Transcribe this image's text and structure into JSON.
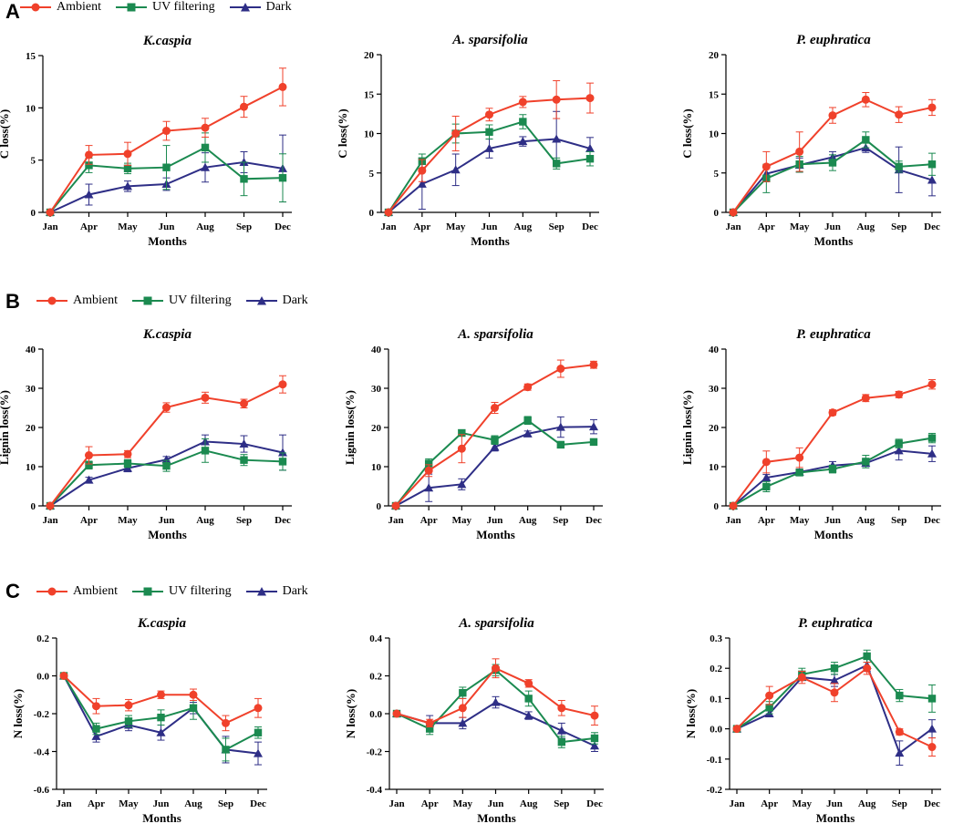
{
  "legend": {
    "ambient": {
      "label": "Ambient",
      "color": "#f0412b",
      "marker": "circle"
    },
    "uv": {
      "label": "UV filtering",
      "color": "#1b8a50",
      "marker": "square"
    },
    "dark": {
      "label": "Dark",
      "color": "#2e2e86",
      "marker": "triangle"
    }
  },
  "panels": {
    "A": "A",
    "B": "B",
    "C": "C"
  },
  "chart_data": [
    {
      "type": "line",
      "title": "K.caspia",
      "xlabel": "Months",
      "ylabel": "C loss(%)",
      "categories": [
        "Jan",
        "Apr",
        "May",
        "Jun",
        "Aug",
        "Sep",
        "Dec"
      ],
      "ylim": [
        0,
        15
      ],
      "yticks": [
        0,
        5,
        10,
        15
      ],
      "ytick_labels": [
        "0",
        "5",
        "10",
        "15"
      ],
      "series": [
        {
          "name": "Ambient",
          "values": [
            0,
            5.5,
            5.6,
            7.8,
            8.1,
            10.1,
            12.0
          ],
          "err": [
            0,
            0.9,
            1.1,
            0.9,
            0.9,
            1.0,
            1.8
          ]
        },
        {
          "name": "UV filtering",
          "values": [
            0,
            4.5,
            4.2,
            4.3,
            6.2,
            3.2,
            3.3
          ],
          "err": [
            0,
            0.7,
            0.5,
            2.1,
            1.4,
            1.6,
            2.3
          ]
        },
        {
          "name": "Dark",
          "values": [
            0,
            1.7,
            2.5,
            2.7,
            4.3,
            4.8,
            4.2
          ],
          "err": [
            0,
            1.0,
            0.5,
            0.6,
            1.4,
            1.0,
            3.2
          ]
        }
      ]
    },
    {
      "type": "line",
      "title": "A. sparsifolia",
      "xlabel": "Months",
      "ylabel": "C loss(%)",
      "categories": [
        "Jan",
        "Apr",
        "May",
        "Jun",
        "Aug",
        "Sep",
        "Dec"
      ],
      "ylim": [
        0,
        20
      ],
      "yticks": [
        0,
        5,
        10,
        15,
        20
      ],
      "ytick_labels": [
        "0",
        "5",
        "10",
        "15",
        "20"
      ],
      "series": [
        {
          "name": "Ambient",
          "values": [
            0,
            5.3,
            10.0,
            12.4,
            14.0,
            14.3,
            14.5
          ],
          "err": [
            0,
            1.4,
            2.2,
            0.8,
            0.7,
            2.4,
            1.9
          ]
        },
        {
          "name": "UV filtering",
          "values": [
            0,
            6.5,
            10.0,
            10.2,
            11.5,
            6.2,
            6.8
          ],
          "err": [
            0,
            0.9,
            1.2,
            0.9,
            0.9,
            0.7,
            0.9
          ]
        },
        {
          "name": "Dark",
          "values": [
            0,
            3.6,
            5.4,
            8.1,
            9.0,
            9.3,
            8.1
          ],
          "err": [
            0,
            3.2,
            2.0,
            1.2,
            0.6,
            3.5,
            1.4
          ]
        }
      ]
    },
    {
      "type": "line",
      "title": "P. euphratica",
      "xlabel": "Months",
      "ylabel": "C loss(%)",
      "categories": [
        "Jan",
        "Apr",
        "May",
        "Jun",
        "Aug",
        "Sep",
        "Dec"
      ],
      "ylim": [
        0,
        20
      ],
      "yticks": [
        0,
        5,
        10,
        15,
        20
      ],
      "ytick_labels": [
        "0",
        "5",
        "10",
        "15",
        "20"
      ],
      "series": [
        {
          "name": "Ambient",
          "values": [
            0,
            5.8,
            7.7,
            12.3,
            14.3,
            12.4,
            13.3
          ],
          "err": [
            0,
            1.9,
            2.5,
            1.0,
            0.9,
            1.0,
            1.0
          ]
        },
        {
          "name": "UV filtering",
          "values": [
            0,
            4.3,
            6.1,
            6.3,
            9.2,
            5.8,
            6.1
          ],
          "err": [
            0,
            1.8,
            1.0,
            1.0,
            1.0,
            0.7,
            1.4
          ]
        },
        {
          "name": "Dark",
          "values": [
            0,
            4.9,
            6.0,
            7.0,
            8.2,
            5.4,
            4.1
          ],
          "err": [
            0,
            1.0,
            0.9,
            0.7,
            0.6,
            2.9,
            2.0
          ]
        }
      ]
    },
    {
      "type": "line",
      "title": "K.caspia",
      "xlabel": "Months",
      "ylabel": "Lignin loss(%)",
      "categories": [
        "Jan",
        "Apr",
        "May",
        "Jun",
        "Aug",
        "Sep",
        "Dec"
      ],
      "ylim": [
        0,
        40
      ],
      "yticks": [
        0,
        10,
        20,
        30,
        40
      ],
      "ytick_labels": [
        "0",
        "10",
        "20",
        "30",
        "40"
      ],
      "series": [
        {
          "name": "Ambient",
          "values": [
            0,
            12.9,
            13.2,
            25.1,
            27.6,
            26.1,
            31.0
          ],
          "err": [
            0,
            2.2,
            0.9,
            1.2,
            1.4,
            1.1,
            2.2
          ]
        },
        {
          "name": "UV filtering",
          "values": [
            0,
            10.4,
            10.8,
            10.2,
            14.1,
            11.7,
            11.3
          ],
          "err": [
            0,
            1.0,
            1.0,
            1.4,
            3.0,
            1.4,
            2.2
          ]
        },
        {
          "name": "Dark",
          "values": [
            0,
            6.6,
            9.6,
            11.8,
            16.4,
            15.8,
            13.6
          ],
          "err": [
            0,
            0.7,
            0.9,
            0.8,
            1.7,
            2.1,
            4.5
          ]
        }
      ]
    },
    {
      "type": "line",
      "title": "A. sparsifolia",
      "xlabel": "Months",
      "ylabel": "Lignin loss(%)",
      "categories": [
        "Jan",
        "Apr",
        "May",
        "Jun",
        "Aug",
        "Sep",
        "Dec"
      ],
      "ylim": [
        0,
        40
      ],
      "yticks": [
        0,
        10,
        20,
        30,
        40
      ],
      "ytick_labels": [
        "0",
        "10",
        "20",
        "30",
        "40"
      ],
      "series": [
        {
          "name": "Ambient",
          "values": [
            0,
            9.0,
            14.6,
            25.0,
            30.3,
            35.0,
            36.0
          ],
          "err": [
            0,
            1.5,
            3.6,
            1.4,
            0.8,
            2.2,
            0.9
          ]
        },
        {
          "name": "UV filtering",
          "values": [
            0,
            10.8,
            18.6,
            16.8,
            21.8,
            15.6,
            16.3
          ],
          "err": [
            0,
            1.2,
            0.8,
            1.1,
            1.0,
            0.8,
            0.7
          ]
        },
        {
          "name": "Dark",
          "values": [
            0,
            4.6,
            5.5,
            15.0,
            18.4,
            20.1,
            20.2
          ],
          "err": [
            0,
            3.5,
            1.4,
            1.0,
            0.7,
            2.6,
            1.8
          ]
        }
      ]
    },
    {
      "type": "line",
      "title": "P. euphratica",
      "xlabel": "Months",
      "ylabel": "Lignin loss(%)",
      "categories": [
        "Jan",
        "Apr",
        "May",
        "Jun",
        "Aug",
        "Sep",
        "Dec"
      ],
      "ylim": [
        0,
        40
      ],
      "yticks": [
        0,
        10,
        20,
        30,
        40
      ],
      "ytick_labels": [
        "0",
        "10",
        "20",
        "30",
        "40"
      ],
      "series": [
        {
          "name": "Ambient",
          "values": [
            0,
            11.2,
            12.3,
            23.8,
            27.5,
            28.4,
            31.0
          ],
          "err": [
            0,
            2.8,
            2.5,
            0.7,
            0.9,
            0.8,
            1.2
          ]
        },
        {
          "name": "UV filtering",
          "values": [
            0,
            4.9,
            8.5,
            9.4,
            11.3,
            15.9,
            17.3
          ],
          "err": [
            0,
            1.3,
            0.7,
            1.0,
            1.6,
            1.1,
            1.2
          ]
        },
        {
          "name": "Dark",
          "values": [
            0,
            7.2,
            8.6,
            10.3,
            10.9,
            14.1,
            13.3
          ],
          "err": [
            0,
            0.8,
            0.8,
            1.0,
            0.8,
            2.4,
            2.0
          ]
        }
      ]
    },
    {
      "type": "line",
      "title": "K.caspia",
      "xlabel": "Months",
      "ylabel": "N loss(%)",
      "categories": [
        "Jan",
        "Apr",
        "May",
        "Jun",
        "Aug",
        "Sep",
        "Dec"
      ],
      "ylim": [
        -0.6,
        0.2
      ],
      "yticks": [
        -0.6,
        -0.4,
        -0.2,
        0.0,
        0.2
      ],
      "ytick_labels": [
        "-0.6",
        "-0.4",
        "-0.2",
        "0.0",
        "0.2"
      ],
      "series": [
        {
          "name": "Ambient",
          "values": [
            0,
            -0.16,
            -0.155,
            -0.1,
            -0.1,
            -0.25,
            -0.17
          ],
          "err": [
            0,
            0.04,
            0.03,
            0.02,
            0.03,
            0.04,
            0.05
          ]
        },
        {
          "name": "UV filtering",
          "values": [
            0,
            -0.28,
            -0.24,
            -0.22,
            -0.17,
            -0.39,
            -0.3
          ],
          "err": [
            0,
            0.03,
            0.03,
            0.04,
            0.06,
            0.06,
            0.03
          ]
        },
        {
          "name": "Dark",
          "values": [
            0,
            -0.32,
            -0.26,
            -0.3,
            -0.17,
            -0.39,
            -0.41
          ],
          "err": [
            0,
            0.03,
            0.03,
            0.04,
            0.03,
            0.07,
            0.06
          ]
        }
      ]
    },
    {
      "type": "line",
      "title": "A. sparsifolia",
      "xlabel": "Months",
      "ylabel": "N loss(%)",
      "categories": [
        "Jan",
        "Apr",
        "May",
        "Jun",
        "Aug",
        "Sep",
        "Dec"
      ],
      "ylim": [
        -0.4,
        0.4
      ],
      "yticks": [
        -0.4,
        -0.2,
        0.0,
        0.2,
        0.4
      ],
      "ytick_labels": [
        "-0.4",
        "-0.2",
        "0.0",
        "0.2",
        "0.4"
      ],
      "series": [
        {
          "name": "Ambient",
          "values": [
            0,
            -0.05,
            0.03,
            0.24,
            0.16,
            0.03,
            -0.01
          ],
          "err": [
            0,
            0.02,
            0.05,
            0.05,
            0.02,
            0.04,
            0.05
          ]
        },
        {
          "name": "UV filtering",
          "values": [
            0,
            -0.08,
            0.11,
            0.23,
            0.08,
            -0.15,
            -0.13
          ],
          "err": [
            0,
            0.03,
            0.03,
            0.03,
            0.04,
            0.03,
            0.03
          ]
        },
        {
          "name": "Dark",
          "values": [
            0,
            -0.05,
            -0.05,
            0.06,
            -0.01,
            -0.09,
            -0.17
          ],
          "err": [
            0,
            0.04,
            0.03,
            0.03,
            0.02,
            0.04,
            0.03
          ]
        }
      ]
    },
    {
      "type": "line",
      "title": "P. euphratica",
      "xlabel": "Months",
      "ylabel": "N loss(%)",
      "categories": [
        "Jan",
        "Apr",
        "May",
        "Jun",
        "Aug",
        "Sep",
        "Dec"
      ],
      "ylim": [
        -0.2,
        0.3
      ],
      "yticks": [
        -0.2,
        -0.1,
        0.0,
        0.1,
        0.2,
        0.3
      ],
      "ytick_labels": [
        "-0.2",
        "-0.1",
        "0.0",
        "0.1",
        "0.2",
        "0.3"
      ],
      "series": [
        {
          "name": "Ambient",
          "values": [
            0,
            0.11,
            0.17,
            0.12,
            0.2,
            -0.01,
            -0.06
          ],
          "err": [
            0,
            0.03,
            0.02,
            0.03,
            0.02,
            0.01,
            0.03
          ]
        },
        {
          "name": "UV filtering",
          "values": [
            0,
            0.07,
            0.18,
            0.2,
            0.24,
            0.11,
            0.1
          ],
          "err": [
            0,
            0.02,
            0.02,
            0.02,
            0.02,
            0.02,
            0.045
          ]
        },
        {
          "name": "Dark",
          "values": [
            0,
            0.05,
            0.17,
            0.16,
            0.21,
            -0.08,
            0.0
          ],
          "err": [
            0,
            0.01,
            0.01,
            0.02,
            0.02,
            0.04,
            0.03
          ]
        }
      ]
    }
  ]
}
